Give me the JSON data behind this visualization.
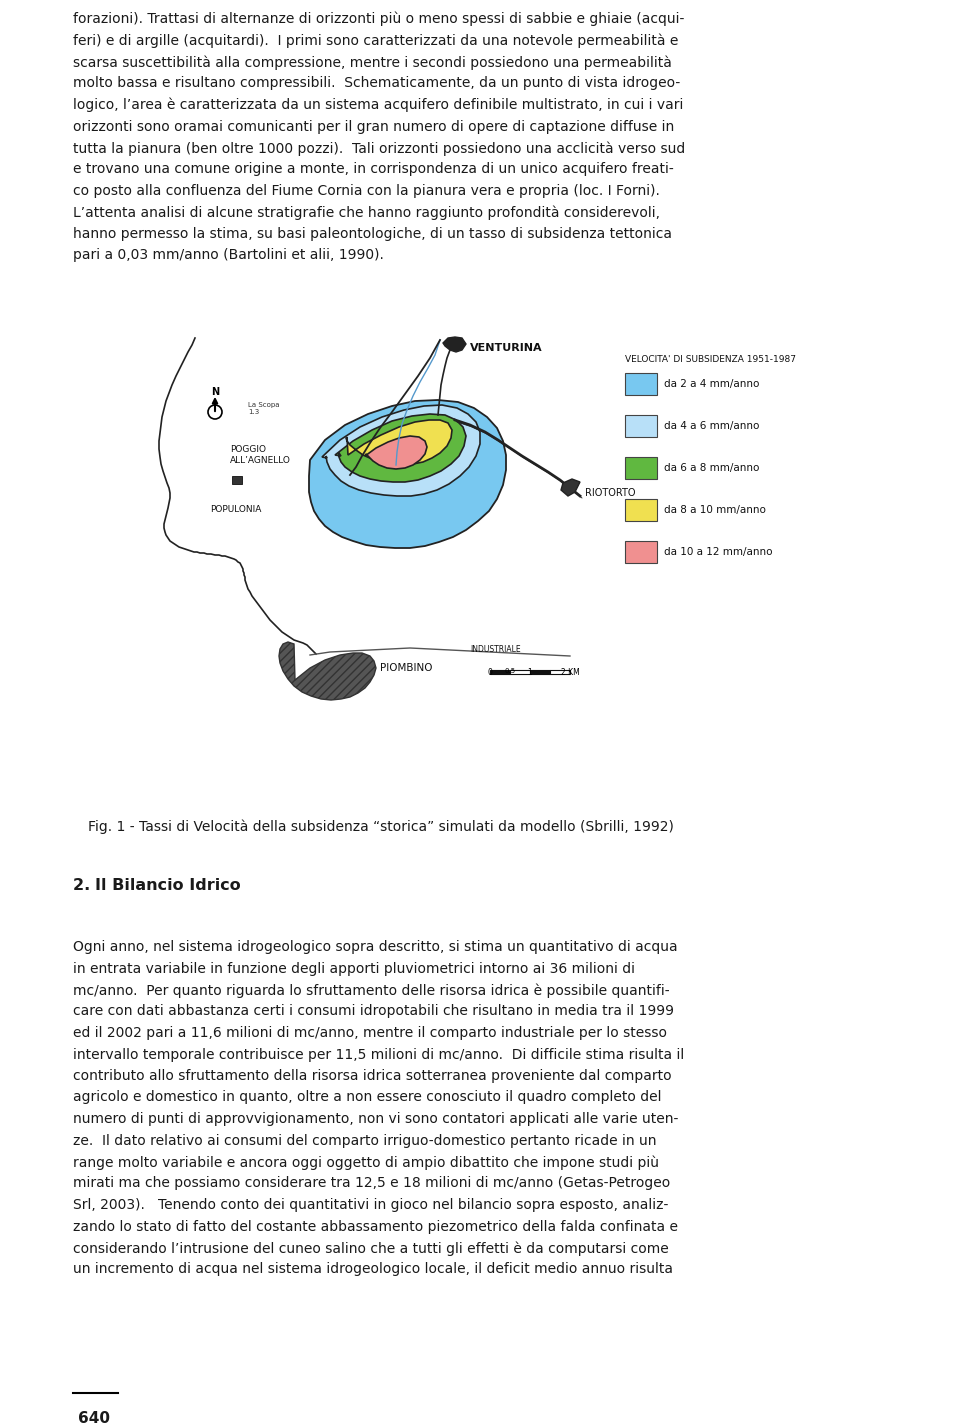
{
  "bg_color": "#ffffff",
  "page_number": "640",
  "top_text_lines": [
    "forazioni). Trattasi di alternanze di orizzonti più o meno spessi di sabbie e ghiaie (acqui-",
    "feri) e di argille (acquitardi).  I primi sono caratterizzati da una notevole permeabilità e",
    "scarsa suscettibilità alla compressione, mentre i secondi possiedono una permeabilità",
    "molto bassa e risultano compressibili.  Schematicamente, da un punto di vista idrogeo-",
    "logico, l’area è caratterizzata da un sistema acquifero definibile multistrato, in cui i vari",
    "orizzonti sono oramai comunicanti per il gran numero di opere di captazione diffuse in",
    "tutta la pianura (ben oltre 1000 pozzi).  Tali orizzonti possiedono una acclicità verso sud",
    "e trovano una comune origine a monte, in corrispondenza di un unico acquifero freati-",
    "co posto alla confluenza del Fiume Cornia con la pianura vera e propria (loc. I Forni).",
    "L’attenta analisi di alcune stratigrafie che hanno raggiunto profondità considerevoli,",
    "hanno permesso la stima, su basi paleontologiche, di un tasso di subsidenza tettonica",
    "pari a 0,03 mm/anno (Bartolini et alii, 1990)."
  ],
  "fig_caption": "Fig. 1 - Tassi di Velocità della subsidenza “storica” simulati da modello (Sbrilli, 1992)",
  "section_title_prefix": "2. ",
  "section_title_main": "Il Bilancio Idrico",
  "bottom_text_lines": [
    "Ogni anno, nel sistema idrogeologico sopra descritto, si stima un quantitativo di acqua",
    "in entrata variabile in funzione degli apporti pluviometrici intorno ai 36 milioni di",
    "mc/anno.  Per quanto riguarda lo sfruttamento delle risorsa idrica è possibile quantifi-",
    "care con dati abbastanza certi i consumi idropotabili che risultano in media tra il 1999",
    "ed il 2002 pari a 11,6 milioni di mc/anno, mentre il comparto industriale per lo stesso",
    "intervallo temporale contribuisce per 11,5 milioni di mc/anno.  Di difficile stima risulta il",
    "contributo allo sfruttamento della risorsa idrica sotterranea proveniente dal comparto",
    "agricolo e domestico in quanto, oltre a non essere conosciuto il quadro completo del",
    "numero di punti di approvvigionamento, non vi sono contatori applicati alle varie uten-",
    "ze.  Il dato relativo ai consumi del comparto irriguo-domestico pertanto ricade in un",
    "range molto variabile e ancora oggi oggetto di ampio dibattito che impone studi più",
    "mirati ma che possiamo considerare tra 12,5 e 18 milioni di mc/anno (Getas-Petrogeo",
    "Srl, 2003).   Tenendo conto dei quantitativi in gioco nel bilancio sopra esposto, analiz-",
    "zando lo stato di fatto del costante abbassamento piezometrico della falda confinata e",
    "considerando l’intrusione del cuneo salino che a tutti gli effetti è da computarsi come",
    "un incremento di acqua nel sistema idrogeologico locale, il deficit medio annuo risulta"
  ],
  "legend_title": "VELOCITA' DI SUBSIDENZA 1951-1987",
  "legend_items": [
    {
      "color": "#78c8f0",
      "label": "da 2 a 4 mm/anno"
    },
    {
      "color": "#b8e0f8",
      "label": "da 4 a 6 mm/anno"
    },
    {
      "color": "#60b840",
      "label": "da 6 a 8 mm/anno"
    },
    {
      "color": "#f0e050",
      "label": "da 8 a 10 mm/anno"
    },
    {
      "color": "#f09090",
      "label": "da 10 a 12 mm/anno"
    }
  ]
}
